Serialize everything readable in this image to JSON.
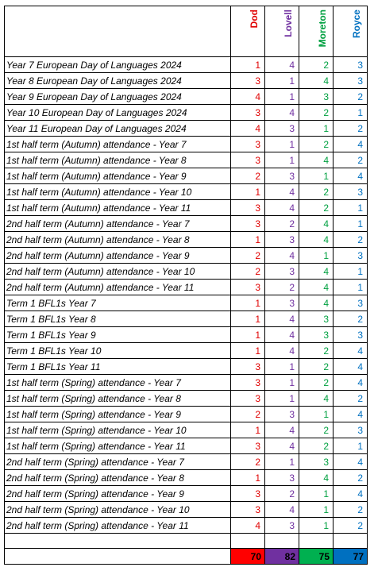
{
  "houses": [
    {
      "name": "Dod",
      "color": "#e00000",
      "total_bg": "#ff0000",
      "total": "70"
    },
    {
      "name": "Lovell",
      "color": "#7030a0",
      "total_bg": "#7030a0",
      "total": "82"
    },
    {
      "name": "Moreton",
      "color": "#00a040",
      "total_bg": "#00b050",
      "total": "75"
    },
    {
      "name": "Royce",
      "color": "#0070c0",
      "total_bg": "#0070c0",
      "total": "77"
    }
  ],
  "rows": [
    {
      "label": "Year 7 European Day of Languages 2024",
      "values": [
        "1",
        "4",
        "2",
        "3"
      ]
    },
    {
      "label": "Year 8 European Day of Languages 2024",
      "values": [
        "3",
        "1",
        "4",
        "3"
      ]
    },
    {
      "label": "Year 9 European Day of Languages 2024",
      "values": [
        "4",
        "1",
        "3",
        "2"
      ]
    },
    {
      "label": "Year 10 European Day of Languages 2024",
      "values": [
        "3",
        "4",
        "2",
        "1"
      ]
    },
    {
      "label": "Year 11 European Day of Languages 2024",
      "values": [
        "4",
        "3",
        "1",
        "2"
      ]
    },
    {
      "label": "1st half term (Autumn) attendance - Year 7",
      "values": [
        "3",
        "1",
        "2",
        "4"
      ]
    },
    {
      "label": "1st half term (Autumn) attendance - Year 8",
      "values": [
        "3",
        "1",
        "4",
        "2"
      ]
    },
    {
      "label": "1st half term (Autumn) attendance - Year 9",
      "values": [
        "2",
        "3",
        "1",
        "4"
      ]
    },
    {
      "label": "1st half term (Autumn) attendance - Year 10",
      "values": [
        "1",
        "4",
        "2",
        "3"
      ]
    },
    {
      "label": "1st half term (Autumn) attendance - Year 11",
      "values": [
        "3",
        "4",
        "2",
        "1"
      ]
    },
    {
      "label": "2nd half term (Autumn) attendance - Year 7",
      "values": [
        "3",
        "2",
        "4",
        "1"
      ]
    },
    {
      "label": "2nd half term (Autumn) attendance - Year 8",
      "values": [
        "1",
        "3",
        "4",
        "2"
      ]
    },
    {
      "label": "2nd half term (Autumn) attendance - Year 9",
      "values": [
        "2",
        "4",
        "1",
        "3"
      ]
    },
    {
      "label": "2nd half term (Autumn) attendance - Year 10",
      "values": [
        "2",
        "3",
        "4",
        "1"
      ]
    },
    {
      "label": "2nd half term (Autumn) attendance - Year 11",
      "values": [
        "3",
        "2",
        "4",
        "1"
      ]
    },
    {
      "label": "Term 1 BFL1s Year 7",
      "values": [
        "1",
        "3",
        "4",
        "3"
      ]
    },
    {
      "label": "Term 1 BFL1s Year 8",
      "values": [
        "1",
        "4",
        "3",
        "2"
      ]
    },
    {
      "label": "Term 1 BFL1s Year 9",
      "values": [
        "1",
        "4",
        "3",
        "3"
      ]
    },
    {
      "label": "Term 1 BFL1s Year 10",
      "values": [
        "1",
        "4",
        "2",
        "4"
      ]
    },
    {
      "label": "Term 1 BFL1s Year 11",
      "values": [
        "3",
        "1",
        "2",
        "4"
      ]
    },
    {
      "label": "1st half term (Spring) attendance - Year 7",
      "values": [
        "3",
        "1",
        "2",
        "4"
      ]
    },
    {
      "label": "1st half term (Spring) attendance - Year 8",
      "values": [
        "3",
        "1",
        "4",
        "2"
      ]
    },
    {
      "label": "1st half term (Spring) attendance - Year 9",
      "values": [
        "2",
        "3",
        "1",
        "4"
      ]
    },
    {
      "label": "1st half term (Spring) attendance - Year 10",
      "values": [
        "1",
        "4",
        "2",
        "3"
      ]
    },
    {
      "label": "1st half term (Spring) attendance - Year 11",
      "values": [
        "3",
        "4",
        "2",
        "1"
      ]
    },
    {
      "label": "2nd half term (Spring) attendance - Year 7",
      "values": [
        "2",
        "1",
        "3",
        "4"
      ]
    },
    {
      "label": "2nd half term (Spring) attendance - Year 8",
      "values": [
        "1",
        "3",
        "4",
        "2"
      ]
    },
    {
      "label": "2nd half term (Spring) attendance - Year 9",
      "values": [
        "3",
        "2",
        "1",
        "4"
      ]
    },
    {
      "label": "2nd half term (Spring) attendance - Year 10",
      "values": [
        "3",
        "4",
        "1",
        "2"
      ]
    },
    {
      "label": "2nd half term (Spring) attendance - Year 11",
      "values": [
        "4",
        "3",
        "1",
        "2"
      ]
    }
  ]
}
